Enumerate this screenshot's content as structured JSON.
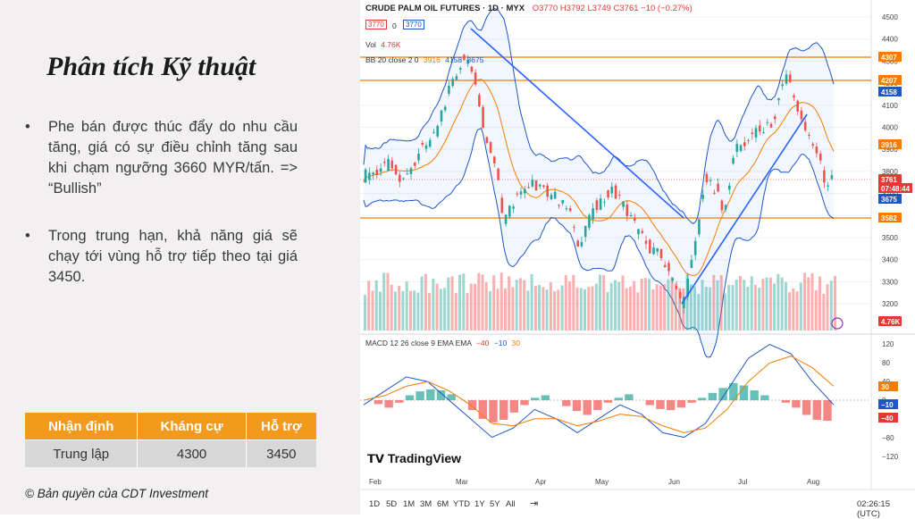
{
  "slide": {
    "title": "Phân tích Kỹ thuật",
    "bullet1": "Phe bán được thúc đẩy do nhu cầu tăng, giá có sự điều chỉnh tăng sau khi chạm ngưỡng 3660 MYR/tấn.  => “Bullish”",
    "bullet2": "Trong trung hạn, khả năng giá sẽ chạy tới vùng hỗ trợ tiếp theo tại giá 3450.",
    "bullet_symbol": "•",
    "table": {
      "headers": [
        "Nhận định",
        "Kháng cự",
        "Hỗ trợ"
      ],
      "row": [
        "Trung lập",
        "4300",
        "3450"
      ]
    },
    "copyright": "© Bản quyền của CDT Investment"
  },
  "tradingview": {
    "symbol": "CRUDE PALM OIL FUTURES · 1D · MYX",
    "ohlc": "O3770 H3792 L3749 C3761 −10 (−0.27%)",
    "price_badges": [
      "3770",
      "0",
      "3770"
    ],
    "vol_label": "Vol",
    "vol_value": "4.76K",
    "bb_label": "BB 20 close 2 0",
    "bb_values": [
      "3916",
      "4158",
      "3675"
    ],
    "macd_label": "MACD 12 26 close 9 EMA EMA",
    "macd_values": [
      "−40",
      "−10",
      "30"
    ],
    "logo": "TradingView",
    "price_axis": [
      "4500",
      "4400",
      "4300",
      "4200",
      "4100",
      "4000",
      "3900",
      "3800",
      "3700",
      "3600",
      "3500",
      "3400",
      "3300",
      "3200"
    ],
    "price_tags": [
      {
        "label": "4307",
        "color": "#f57c00"
      },
      {
        "label": "4207",
        "color": "#f57c00"
      },
      {
        "label": "4158",
        "color": "#1e56c6"
      },
      {
        "label": "3916",
        "color": "#f57c00"
      },
      {
        "label": "3761",
        "color": "#e53935"
      },
      {
        "label": "07:48:44",
        "color": "#e53935"
      },
      {
        "label": "3675",
        "color": "#1e56c6"
      },
      {
        "label": "3582",
        "color": "#f57c00"
      },
      {
        "label": "4.76K",
        "color": "#e53935"
      }
    ],
    "macd_axis": [
      "120",
      "80",
      "40",
      "0",
      "−40",
      "−80",
      "−120"
    ],
    "macd_tags": [
      {
        "label": "30",
        "color": "#f57c00"
      },
      {
        "label": "−10",
        "color": "#1e56c6"
      },
      {
        "label": "−40",
        "color": "#e53935"
      }
    ],
    "months": [
      "Feb",
      "Mar",
      "Apr",
      "May",
      "Jun",
      "Jul",
      "Aug"
    ],
    "timeframes": [
      "1D",
      "5D",
      "1M",
      "3M",
      "6M",
      "YTD",
      "1Y",
      "5Y",
      "All"
    ],
    "clock": "02:26:15 (UTC)",
    "colors": {
      "up": "#26a69a",
      "down": "#ef5350",
      "bb": "#1e56c6",
      "basis": "#f57c00",
      "level": "#f57c00"
    }
  }
}
